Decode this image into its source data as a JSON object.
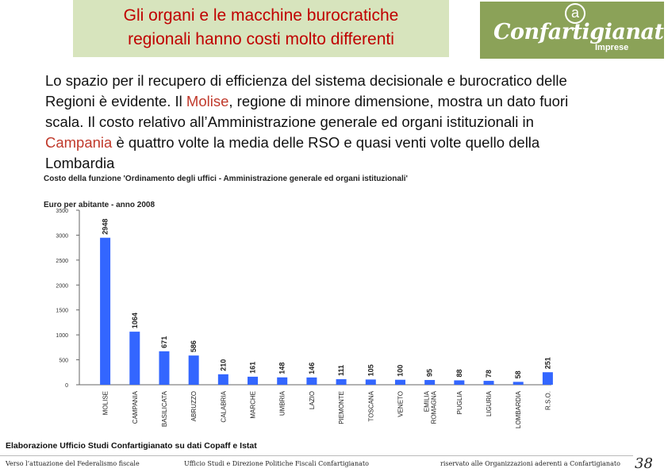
{
  "header": {
    "title_line1": "Gli organi e le macchine burocratiche",
    "title_line2": "regionali hanno costi molto differenti"
  },
  "logo": {
    "symbol": "a",
    "wordmark": "Confartigianato",
    "sub": "Imprese"
  },
  "body": {
    "part1": "Lo spazio per il recupero di efficienza del sistema decisionale e burocratico delle Regioni è evidente. Il ",
    "highlight1": "Molise",
    "part2": ", regione di minore dimensione, mostra un dato fuori scala. Il costo relativo all’Amministrazione generale ed organi istituzionali in ",
    "highlight2": "Campania",
    "part3": " è quattro volte la media delle RSO e quasi venti volte quello della Lombardia",
    "highlight_color": "#c0392b"
  },
  "chart_data": {
    "type": "bar",
    "title": "Costo della funzione 'Ordinamento degli uffici - Amministrazione generale ed organi istituzionali'",
    "units": "Euro per abitante - anno 2008",
    "categories": [
      "MOLISE",
      "CAMPANIA",
      "BASILICATA",
      "ABRUZZO",
      "CALABRIA",
      "MARCHE",
      "UMBRIA",
      "LAZIO",
      "PIEMONTE",
      "TOSCANA",
      "VENETO",
      "EMILIA ROMAGNA",
      "PUGLIA",
      "LIGURIA",
      "LOMBARDIA",
      "R.S.O."
    ],
    "values": [
      2948,
      1064,
      671,
      586,
      210,
      161,
      148,
      146,
      111,
      105,
      100,
      95,
      88,
      78,
      58,
      251
    ],
    "value_labels": [
      "2948",
      "1064",
      "671",
      "586",
      "210",
      "161",
      "148",
      "146",
      "111",
      "105",
      "100",
      "95",
      "88",
      "78",
      "58",
      "251"
    ],
    "yticks": [
      "0",
      "500",
      "1000",
      "1500",
      "2000",
      "2500",
      "3000",
      "3500"
    ],
    "ylim": [
      0,
      3500
    ],
    "bar_color": "#3366ff",
    "grid": false
  },
  "source": "Elaborazione Ufficio Studi Confartigianato su dati Copaff e Istat",
  "footer": {
    "left": "Verso l’attuazione del Federalismo fiscale",
    "center": "Ufficio Studi e Direzione Politiche Fiscali Confartigianato",
    "right": "riservato alle Organizzazioni aderenti a Confartigianato",
    "page": "38"
  }
}
